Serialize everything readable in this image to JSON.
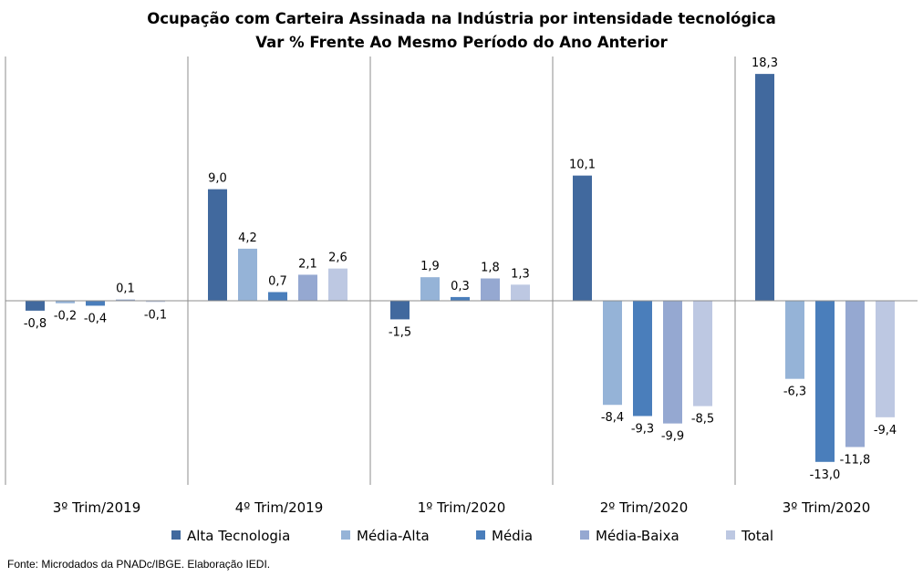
{
  "chart_data": {
    "type": "bar",
    "title": "Ocupação com Carteira Assinada na Indústria por intensidade tecnológica",
    "subtitle": "Var % Frente Ao Mesmo Período do Ano Anterior",
    "categories": [
      "3º Trim/2019",
      "4º Trim/2019",
      "1º Trim/2020",
      "2º Trim/2020",
      "3º Trim/2020"
    ],
    "series": [
      {
        "name": "Alta Tecnologia",
        "color": "#41699e",
        "values": [
          -0.8,
          9.0,
          -1.5,
          10.1,
          18.3
        ]
      },
      {
        "name": "Média-Alta",
        "color": "#95b3d7",
        "values": [
          -0.2,
          4.2,
          1.9,
          -8.4,
          -6.3
        ]
      },
      {
        "name": "Média",
        "color": "#4a7ebb",
        "values": [
          -0.4,
          0.7,
          0.3,
          -9.3,
          -13.0
        ]
      },
      {
        "name": "Média-Baixa",
        "color": "#95a8d1",
        "values": [
          0.1,
          2.1,
          1.8,
          -9.9,
          -11.8
        ]
      },
      {
        "name": "Total",
        "color": "#bdc8e2",
        "values": [
          -0.1,
          2.6,
          1.3,
          -8.5,
          -9.4
        ]
      }
    ],
    "data_labels": [
      [
        "-0,8",
        "9,0",
        "-1,5",
        "10,1",
        "18,3"
      ],
      [
        "-0,2",
        "4,2",
        "1,9",
        "-8,4",
        "-6,3"
      ],
      [
        "-0,4",
        "0,7",
        "0,3",
        "-9,3",
        "-13,0"
      ],
      [
        "0,1",
        "2,1",
        "1,8",
        "-9,9",
        "-11,8"
      ],
      [
        "-0,1",
        "2,6",
        "1,3",
        "-8,5",
        "-9,4"
      ]
    ],
    "ylim": [
      -15.2,
      20.0
    ],
    "legend_position": "bottom",
    "grid": false
  },
  "source": "Fonte: Microdados da PNADc/IBGE. Elaboração IEDI."
}
